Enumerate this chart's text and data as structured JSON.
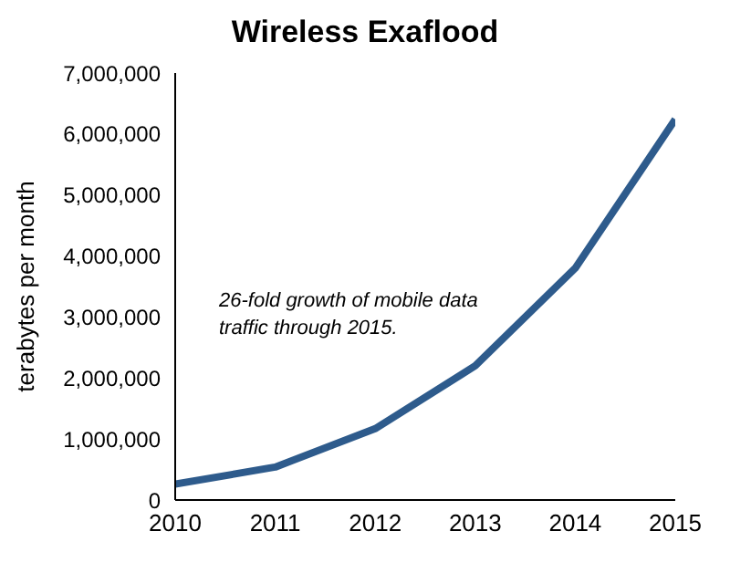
{
  "chart_data": {
    "type": "line",
    "title": "Wireless Exaflood",
    "ylabel": "terabytes per month",
    "x": [
      2010,
      2011,
      2012,
      2013,
      2014,
      2015
    ],
    "series": [
      {
        "color": "#2e5b8c",
        "values": [
          260000,
          540000,
          1170000,
          2200000,
          3800000,
          6240000
        ]
      }
    ],
    "xlim": [
      2010,
      2015
    ],
    "xticks": [
      2010,
      2011,
      2012,
      2013,
      2014,
      2015
    ],
    "ylim": [
      0,
      7000000
    ],
    "yticks": [
      0,
      {
        "value": 1000000,
        "label": "1,000,000"
      },
      {
        "value": 2000000,
        "label": "2,000,000"
      },
      {
        "value": 3000000,
        "label": "3,000,000"
      },
      {
        "value": 4000000,
        "label": "4,000,000"
      },
      {
        "value": 5000000,
        "label": "5,000,000"
      },
      {
        "value": 6000000,
        "label": "6,000,000"
      },
      {
        "value": 7000000,
        "label": "7,000,000"
      }
    ],
    "annotations": [
      "26-fold growth of mobile data traffic through 2015."
    ],
    "marker": "none",
    "line_style": "solid"
  }
}
